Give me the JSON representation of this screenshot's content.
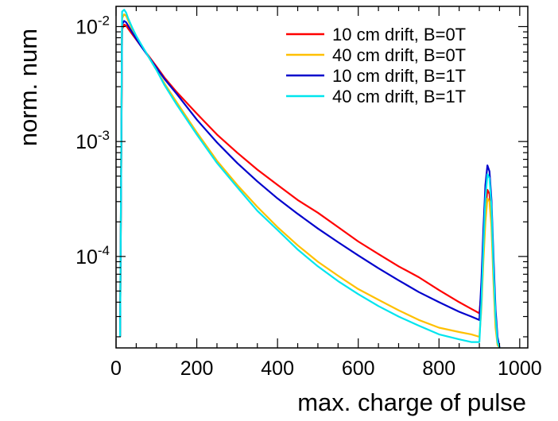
{
  "chart_data": {
    "type": "line",
    "title": "",
    "xlabel": "max. charge of pulse",
    "ylabel": "norm. num",
    "x_scale": "linear",
    "y_scale": "log",
    "xlim": [
      0,
      1020
    ],
    "ylim": [
      1.6e-05,
      0.015
    ],
    "x_ticks": [
      {
        "value": 0,
        "label": "0"
      },
      {
        "value": 200,
        "label": "200"
      },
      {
        "value": 400,
        "label": "400"
      },
      {
        "value": 600,
        "label": "600"
      },
      {
        "value": 800,
        "label": "800"
      },
      {
        "value": 1000,
        "label": "1000"
      }
    ],
    "y_ticks": [
      {
        "value": 0.01,
        "mantissa": "10",
        "exponent": "-2"
      },
      {
        "value": 0.001,
        "mantissa": "10",
        "exponent": "-3"
      },
      {
        "value": 0.0001,
        "mantissa": "10",
        "exponent": "-4"
      }
    ],
    "grid": false,
    "legend_position": "top-right",
    "series": [
      {
        "name": "10 cm drift, B=0T",
        "color": "#ff0000",
        "x": [
          10,
          15,
          20,
          25,
          30,
          40,
          50,
          60,
          80,
          100,
          120,
          150,
          200,
          250,
          300,
          350,
          400,
          450,
          500,
          550,
          600,
          650,
          700,
          750,
          800,
          850,
          880,
          900,
          905,
          910,
          915,
          920,
          925,
          930,
          935,
          940,
          945,
          950
        ],
        "y": [
          2e-05,
          0.0095,
          0.0104,
          0.0102,
          0.0096,
          0.0086,
          0.0077,
          0.0069,
          0.0056,
          0.0045,
          0.0036,
          0.0027,
          0.00175,
          0.00115,
          0.0008,
          0.00057,
          0.00042,
          0.00031,
          0.00024,
          0.00018,
          0.000135,
          0.000105,
          8.2e-05,
          6.6e-05,
          5.1e-05,
          4e-05,
          3.5e-05,
          3.2e-05,
          5e-05,
          0.00012,
          0.00025,
          0.00038,
          0.00035,
          0.00021,
          7e-05,
          2.8e-05,
          1.8e-05,
          1.6e-05
        ]
      },
      {
        "name": "40 cm drift, B=0T",
        "color": "#ffc000",
        "x": [
          10,
          15,
          20,
          25,
          30,
          40,
          50,
          60,
          80,
          100,
          120,
          150,
          200,
          250,
          300,
          350,
          400,
          450,
          500,
          550,
          600,
          650,
          700,
          750,
          800,
          850,
          880,
          900,
          905,
          910,
          915,
          920,
          925,
          930,
          935,
          940,
          945,
          950
        ],
        "y": [
          2e-05,
          0.0118,
          0.0128,
          0.0124,
          0.0113,
          0.0095,
          0.0082,
          0.0071,
          0.0055,
          0.0042,
          0.0032,
          0.0022,
          0.0012,
          0.00068,
          0.00042,
          0.00027,
          0.00018,
          0.000125,
          9e-05,
          6.8e-05,
          5.2e-05,
          4.2e-05,
          3.4e-05,
          2.8e-05,
          2.4e-05,
          2.2e-05,
          2.1e-05,
          2e-05,
          3.5e-05,
          9e-05,
          0.0002,
          0.00032,
          0.0003,
          0.00018,
          6e-05,
          2.4e-05,
          1.7e-05,
          1.6e-05
        ]
      },
      {
        "name": "10 cm drift, B=1T",
        "color": "#0000cc",
        "x": [
          10,
          15,
          20,
          25,
          30,
          40,
          50,
          60,
          80,
          100,
          120,
          150,
          200,
          250,
          300,
          350,
          400,
          450,
          500,
          550,
          600,
          650,
          700,
          750,
          800,
          850,
          880,
          900,
          905,
          910,
          915,
          920,
          925,
          930,
          935,
          940,
          945,
          950
        ],
        "y": [
          2e-05,
          0.0105,
          0.0112,
          0.0109,
          0.0102,
          0.0089,
          0.0078,
          0.0069,
          0.0055,
          0.0044,
          0.0035,
          0.0026,
          0.00155,
          0.00098,
          0.00065,
          0.00045,
          0.00032,
          0.000235,
          0.000175,
          0.000133,
          0.000102,
          7.9e-05,
          6.2e-05,
          4.9e-05,
          4e-05,
          3.3e-05,
          3e-05,
          2.8e-05,
          6e-05,
          0.00017,
          0.00042,
          0.00062,
          0.00055,
          0.00031,
          0.0001,
          3.5e-05,
          2e-05,
          1.6e-05
        ]
      },
      {
        "name": "40 cm drift, B=1T",
        "color": "#00e5ee",
        "x": [
          10,
          15,
          20,
          25,
          30,
          40,
          50,
          60,
          80,
          100,
          120,
          150,
          200,
          250,
          300,
          350,
          400,
          450,
          500,
          550,
          600,
          650,
          700,
          750,
          800,
          850,
          880,
          900,
          905,
          910,
          915,
          920,
          925,
          930,
          935,
          940,
          945,
          950
        ],
        "y": [
          2e-05,
          0.0135,
          0.014,
          0.0132,
          0.0118,
          0.0098,
          0.0083,
          0.0072,
          0.0055,
          0.0042,
          0.0031,
          0.0021,
          0.00115,
          0.00065,
          0.0004,
          0.00025,
          0.00017,
          0.000115,
          8.2e-05,
          6.1e-05,
          4.7e-05,
          3.7e-05,
          3e-05,
          2.5e-05,
          2.1e-05,
          1.9e-05,
          1.8e-05,
          1.8e-05,
          4e-05,
          0.00012,
          0.00032,
          0.00052,
          0.00048,
          0.00027,
          8e-05,
          3e-05,
          1.8e-05,
          1.6e-05
        ]
      }
    ]
  }
}
